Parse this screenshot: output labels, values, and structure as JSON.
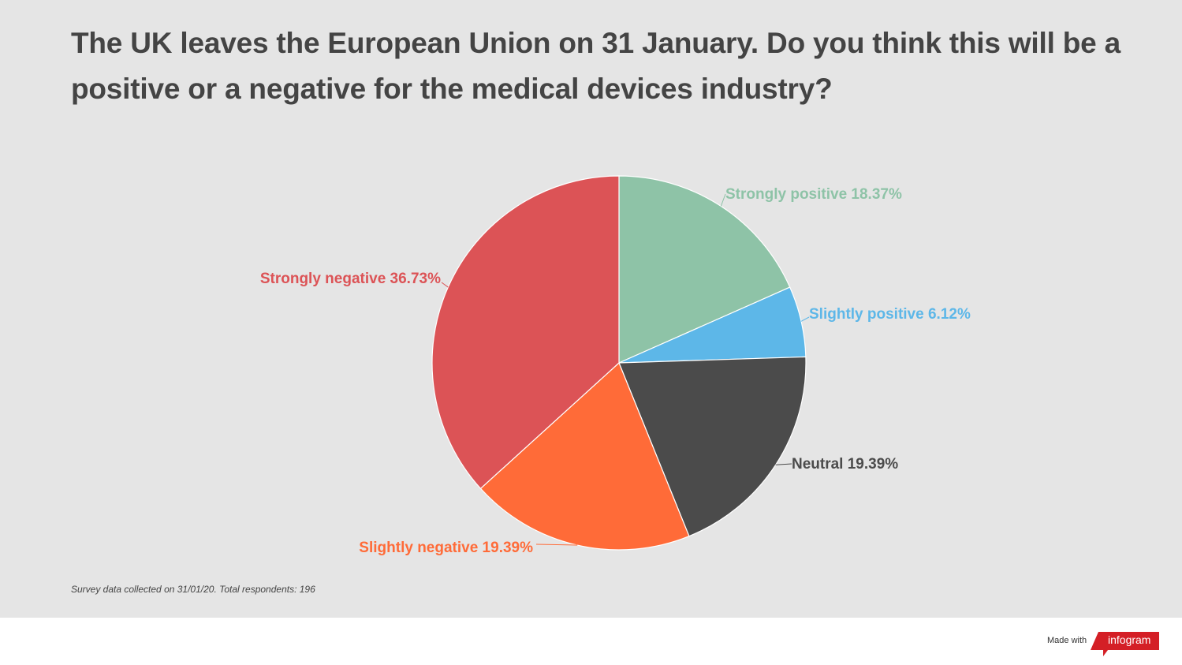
{
  "chart_data": {
    "type": "pie",
    "title": "The UK leaves the European Union on 31 January. Do you think this will be a positive or a negative for the medical devices industry?",
    "slices": [
      {
        "label": "Strongly positive",
        "value": 18.37,
        "color": "#8ec3a7"
      },
      {
        "label": "Slightly positive",
        "value": 6.12,
        "color": "#5db7e8"
      },
      {
        "label": "Neutral",
        "value": 19.39,
        "color": "#4b4b4b"
      },
      {
        "label": "Slightly negative",
        "value": 19.39,
        "color": "#ff6b38"
      },
      {
        "label": "Strongly negative",
        "value": 36.73,
        "color": "#dc5356"
      }
    ],
    "label_format": "{label} {value}%",
    "start": "top",
    "direction": "clockwise"
  },
  "footnote": "Survey data collected on 31/01/20. Total respondents: 196",
  "branding": {
    "made_with": "Made with",
    "logo": "infogram",
    "logo_color": "#d41f26"
  }
}
